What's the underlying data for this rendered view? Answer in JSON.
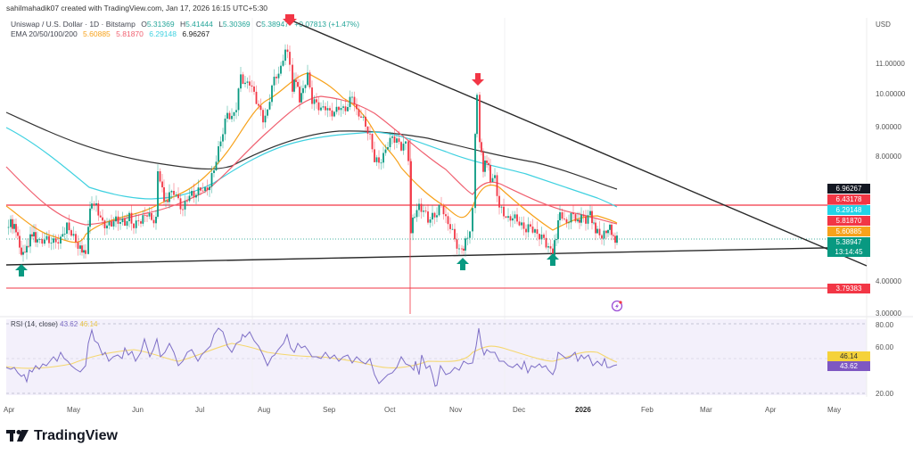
{
  "header": {
    "credit": "sahilmahadik07 created with TradingView.com, Jan 17, 2026 16:15 UTC+5:30"
  },
  "legend": {
    "symbol": "Uniswap / U.S. Dollar · 1D · Bitstamp",
    "open_label": "O",
    "open": "5.31369",
    "high_label": "H",
    "high": "5.41444",
    "low_label": "L",
    "low": "5.30369",
    "close_label": "C",
    "close": "5.38947",
    "change": "+0.07813 (+1.47%)",
    "ema_label": "EMA 20/50/100/200",
    "ema20": "5.60885",
    "ema50": "5.81870",
    "ema100": "6.29148",
    "ema200": "6.96267"
  },
  "price_axis": {
    "currency": "USD",
    "ticks": [
      "11.00000",
      "10.00000",
      "9.00000",
      "8.00000",
      "4.00000",
      "3.00000"
    ]
  },
  "price_tags": [
    {
      "value": "6.96267",
      "color": "#131722",
      "label": "EMA 200"
    },
    {
      "value": "6.43178",
      "color": "#f23645",
      "label": "Resistance line"
    },
    {
      "value": "6.29148",
      "color": "#22d3e6",
      "label": "EMA 100"
    },
    {
      "value": "5.81870",
      "color": "#f23645",
      "label": "EMA 50"
    },
    {
      "value": "5.60885",
      "color": "#f7a21b",
      "label": "EMA 20"
    },
    {
      "value": "5.38947",
      "color": "#089981",
      "label": "Last price"
    },
    {
      "value": "13:14:45",
      "color": "#089981",
      "label": "Bar countdown"
    },
    {
      "value": "3.79383",
      "color": "#f23645",
      "label": "Support line"
    }
  ],
  "rsi": {
    "label": "RSI (14, close)",
    "value": "43.62",
    "ma_value": "46.14",
    "ticks": [
      "80.00",
      "60.00",
      "40.00",
      "20.00"
    ],
    "tag_rsi": "43.62",
    "tag_ma": "46.14"
  },
  "time_axis": {
    "labels": [
      "Apr",
      "May",
      "Jun",
      "Jul",
      "Aug",
      "Sep",
      "Oct",
      "Nov",
      "Dec",
      "2026",
      "Feb",
      "Mar",
      "Apr",
      "May"
    ]
  },
  "footer": {
    "brand": "TradingView"
  },
  "colors": {
    "up": "#089981",
    "down": "#f23645",
    "ema20": "#f7a21b",
    "ema50": "#f06070",
    "ema100": "#3fd1e0",
    "ema200": "#333333",
    "rsi_line": "#7e6fc6",
    "rsi_ma": "#f5d76e",
    "rsi_bg": "#f3f0fb"
  },
  "chart_data": {
    "type": "candlestick",
    "title": "Uniswap / U.S. Dollar · 1D · Bitstamp",
    "xlabel": "",
    "ylabel": "USD",
    "x_range": [
      "Apr 2025",
      "May 2026"
    ],
    "y_range": [
      3.0,
      11.8
    ],
    "ohlc_last": {
      "open": 5.31369,
      "high": 5.41444,
      "low": 5.30369,
      "close": 5.38947,
      "change": 0.07813,
      "change_pct": 1.47
    },
    "approx_path": [
      {
        "date": "Apr 2025",
        "close": 5.8
      },
      {
        "date": "mid Apr 2025",
        "close": 4.9
      },
      {
        "date": "May 2025",
        "close": 5.9
      },
      {
        "date": "late May 2025",
        "close": 5.0
      },
      {
        "date": "Jun 2025",
        "close": 6.6
      },
      {
        "date": "mid Jun 2025",
        "close": 6.7
      },
      {
        "date": "late Jun 2025",
        "close": 7.3
      },
      {
        "date": "Jul 2025",
        "close": 7.8
      },
      {
        "date": "mid Jul 2025",
        "close": 10.6
      },
      {
        "date": "late Jul 2025",
        "close": 9.2
      },
      {
        "date": "Aug 2025",
        "close": 10.7
      },
      {
        "date": "mid Aug 2025",
        "close": 11.6
      },
      {
        "date": "late Aug 2025",
        "close": 10.3
      },
      {
        "date": "Sep 2025",
        "close": 9.6
      },
      {
        "date": "mid Sep 2025",
        "close": 9.9
      },
      {
        "date": "late Sep 2025",
        "close": 8.0
      },
      {
        "date": "early Oct 2025",
        "close": 8.6
      },
      {
        "date": "Oct 10 2025",
        "close": 5.6
      },
      {
        "date": "late Oct 2025",
        "close": 6.2
      },
      {
        "date": "early Nov 2025",
        "close": 4.9
      },
      {
        "date": "Nov 10 2025",
        "close": 10.2
      },
      {
        "date": "mid Nov 2025",
        "close": 7.5
      },
      {
        "date": "Dec 2025",
        "close": 6.0
      },
      {
        "date": "mid Dec 2025",
        "close": 5.0
      },
      {
        "date": "late Dec 2025",
        "close": 6.4
      },
      {
        "date": "Jan 2026",
        "close": 6.1
      },
      {
        "date": "Jan 17 2026",
        "close": 5.39
      }
    ],
    "series": [
      {
        "name": "EMA 20",
        "last": 5.60885
      },
      {
        "name": "EMA 50",
        "last": 5.8187
      },
      {
        "name": "EMA 100",
        "last": 6.29148
      },
      {
        "name": "EMA 200",
        "last": 6.96267
      }
    ],
    "annotations": [
      {
        "type": "hline",
        "value": 6.43178,
        "color": "#f23645",
        "label": "resistance"
      },
      {
        "type": "hline",
        "value": 3.79383,
        "color": "#f23645",
        "label": "support"
      },
      {
        "type": "trendline",
        "label": "descending resistance",
        "from": {
          "date": "Aug 2025",
          "price": 11.8
        },
        "to": {
          "date": "May 2026",
          "price": 4.6
        }
      },
      {
        "type": "trendline",
        "label": "ascending support",
        "from": {
          "date": "Apr 2025",
          "price": 4.6
        },
        "to": {
          "date": "May 2026",
          "price": 5.0
        }
      },
      {
        "type": "arrow-down",
        "date": "mid Aug 2025",
        "color": "#f23645"
      },
      {
        "type": "arrow-down",
        "date": "Nov 10 2025",
        "color": "#f23645"
      },
      {
        "type": "arrow-up",
        "date": "mid Apr 2025",
        "color": "#089981"
      },
      {
        "type": "arrow-up",
        "date": "early Nov 2025",
        "color": "#089981"
      },
      {
        "type": "arrow-up",
        "date": "mid Dec 2025",
        "color": "#089981"
      }
    ],
    "rsi": {
      "name": "RSI (14, close)",
      "last": 43.62,
      "ma_last": 46.14,
      "ylim": [
        20,
        80
      ],
      "levels": [
        80,
        60,
        40,
        20
      ]
    },
    "grid": false,
    "legend_position": "top-left"
  }
}
